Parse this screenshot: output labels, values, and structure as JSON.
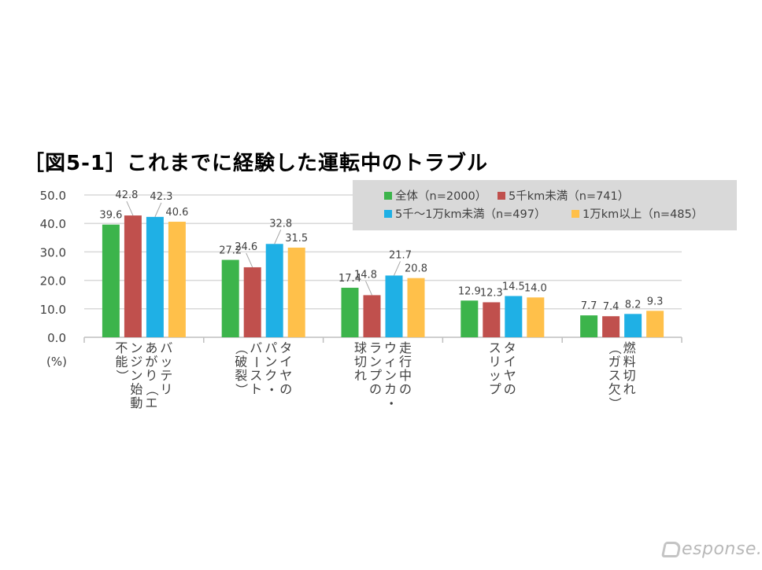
{
  "chart_data": {
    "type": "bar",
    "title": "［図5-1］これまでに経験した運転中のトラブル",
    "ylabel": "(%)",
    "ylim": [
      0,
      50
    ],
    "yticks": [
      "0.0",
      "10.0",
      "20.0",
      "30.0",
      "40.0",
      "50.0"
    ],
    "grid": true,
    "legend_position": "top-right",
    "categories": [
      [
        "バッテリ",
        "あがり（エ",
        "ンジン始動",
        "不能）"
      ],
      [
        "タイヤの",
        "パンク・",
        "バースト",
        "（破裂）"
      ],
      [
        "走行中の",
        "ウィンカ・",
        "ランプの",
        "球切れ"
      ],
      [
        "タイヤの",
        "スリップ"
      ],
      [
        "燃料切れ",
        "（ガス欠）"
      ]
    ],
    "series": [
      {
        "name": "全体（n=2000）",
        "color": "#3cb44b",
        "values": [
          39.6,
          27.2,
          17.4,
          12.9,
          7.7
        ],
        "labels": [
          "39.6",
          "27.2",
          "17.4",
          "12.9",
          "7.7"
        ]
      },
      {
        "name": "5千km未満（n=741）",
        "color": "#c0504d",
        "values": [
          42.8,
          24.6,
          14.8,
          12.3,
          7.4
        ],
        "labels": [
          "42.8",
          "24.6",
          "14.8",
          "12.3",
          "7.4"
        ]
      },
      {
        "name": "5千～1万km未満（n=497）",
        "color": "#1fb0e5",
        "values": [
          42.3,
          32.8,
          21.7,
          14.5,
          8.2
        ],
        "labels": [
          "42.3",
          "32.8",
          "21.7",
          "14.5",
          "8.2"
        ]
      },
      {
        "name": "1万km以上（n=485）",
        "color": "#ffc04a",
        "values": [
          40.6,
          31.5,
          20.8,
          14.0,
          9.3
        ],
        "labels": [
          "40.6",
          "31.5",
          "20.8",
          "14.0",
          "9.3"
        ]
      }
    ]
  },
  "watermark": {
    "text": "esponse."
  }
}
